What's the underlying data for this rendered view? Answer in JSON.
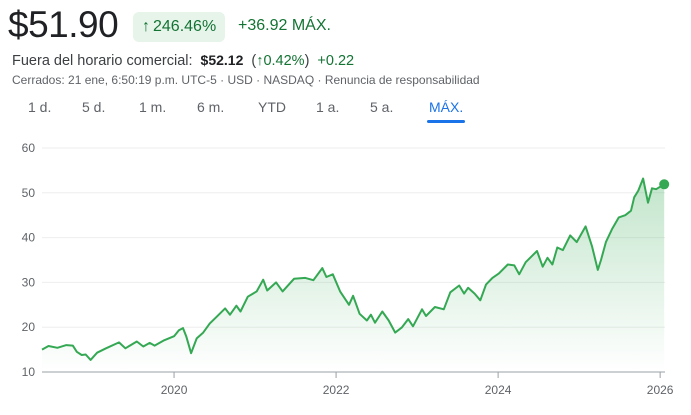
{
  "quote": {
    "price": "$51.90",
    "change_percent": "246.46%",
    "change_abs": "+36.92",
    "range_label": "MÁX.",
    "up_icon": "arrow-up-icon",
    "positive_color": "#137333"
  },
  "after_hours": {
    "label": "Fuera del horario comercial:",
    "price": "$52.12",
    "change_percent": "0.42%",
    "change_abs": "+0.22"
  },
  "meta": {
    "closed": "Cerrados: 21 ene, 6:50:19 p.m. UTC-5",
    "currency": "USD",
    "exchange": "NASDAQ",
    "disclaimer": "Renuncia de responsabilidad"
  },
  "tabs": [
    {
      "label": "1 d.",
      "active": false
    },
    {
      "label": "5 d.",
      "active": false
    },
    {
      "label": "1 m.",
      "active": false
    },
    {
      "label": "6 m.",
      "active": false
    },
    {
      "label": "YTD",
      "active": false
    },
    {
      "label": "1 a.",
      "active": false
    },
    {
      "label": "5 a.",
      "active": false
    },
    {
      "label": "MÁX.",
      "active": true
    }
  ],
  "chart_data": {
    "type": "area",
    "line_color": "#34a853",
    "grid": true,
    "ylim": [
      10,
      60
    ],
    "yticks": [
      "10",
      "20",
      "30",
      "40",
      "50",
      "60"
    ],
    "xlim": [
      2018.37,
      2026.06
    ],
    "xticks": [
      {
        "label": "2020",
        "value": 2020
      },
      {
        "label": "2022",
        "value": 2022
      },
      {
        "label": "2024",
        "value": 2024
      },
      {
        "label": "2026",
        "value": 2026
      }
    ],
    "points": [
      [
        2018.37,
        15.0
      ],
      [
        2018.45,
        15.8
      ],
      [
        2018.56,
        15.4
      ],
      [
        2018.67,
        16.0
      ],
      [
        2018.75,
        15.9
      ],
      [
        2018.8,
        14.5
      ],
      [
        2018.86,
        13.8
      ],
      [
        2018.91,
        13.9
      ],
      [
        2018.97,
        12.7
      ],
      [
        2019.05,
        14.3
      ],
      [
        2019.16,
        15.3
      ],
      [
        2019.32,
        16.6
      ],
      [
        2019.4,
        15.3
      ],
      [
        2019.54,
        16.8
      ],
      [
        2019.62,
        15.7
      ],
      [
        2019.7,
        16.5
      ],
      [
        2019.76,
        15.9
      ],
      [
        2019.87,
        17.0
      ],
      [
        2020.0,
        18.0
      ],
      [
        2020.06,
        19.3
      ],
      [
        2020.11,
        19.8
      ],
      [
        2020.15,
        18.0
      ],
      [
        2020.21,
        14.2
      ],
      [
        2020.28,
        17.5
      ],
      [
        2020.36,
        18.8
      ],
      [
        2020.44,
        20.8
      ],
      [
        2020.53,
        22.4
      ],
      [
        2020.63,
        24.2
      ],
      [
        2020.69,
        22.8
      ],
      [
        2020.77,
        24.8
      ],
      [
        2020.82,
        23.5
      ],
      [
        2020.91,
        26.8
      ],
      [
        2021.02,
        28.0
      ],
      [
        2021.1,
        30.6
      ],
      [
        2021.15,
        28.2
      ],
      [
        2021.26,
        30.0
      ],
      [
        2021.34,
        28.0
      ],
      [
        2021.48,
        30.8
      ],
      [
        2021.62,
        31.0
      ],
      [
        2021.72,
        30.5
      ],
      [
        2021.83,
        33.2
      ],
      [
        2021.88,
        31.2
      ],
      [
        2021.96,
        31.8
      ],
      [
        2022.05,
        28.0
      ],
      [
        2022.16,
        25.0
      ],
      [
        2022.21,
        27.0
      ],
      [
        2022.29,
        23.0
      ],
      [
        2022.38,
        21.5
      ],
      [
        2022.43,
        22.8
      ],
      [
        2022.48,
        21.0
      ],
      [
        2022.57,
        23.5
      ],
      [
        2022.65,
        21.5
      ],
      [
        2022.73,
        18.8
      ],
      [
        2022.81,
        19.9
      ],
      [
        2022.89,
        21.8
      ],
      [
        2022.95,
        20.2
      ],
      [
        2023.06,
        24.0
      ],
      [
        2023.11,
        22.5
      ],
      [
        2023.22,
        24.5
      ],
      [
        2023.33,
        24.0
      ],
      [
        2023.41,
        27.8
      ],
      [
        2023.52,
        29.3
      ],
      [
        2023.58,
        27.5
      ],
      [
        2023.63,
        28.8
      ],
      [
        2023.71,
        27.5
      ],
      [
        2023.78,
        26.0
      ],
      [
        2023.85,
        29.5
      ],
      [
        2023.93,
        31.0
      ],
      [
        2024.01,
        32.0
      ],
      [
        2024.12,
        34.0
      ],
      [
        2024.2,
        33.8
      ],
      [
        2024.26,
        31.8
      ],
      [
        2024.34,
        34.5
      ],
      [
        2024.48,
        37.0
      ],
      [
        2024.55,
        33.5
      ],
      [
        2024.61,
        35.5
      ],
      [
        2024.67,
        34.0
      ],
      [
        2024.73,
        37.8
      ],
      [
        2024.8,
        37.2
      ],
      [
        2024.89,
        40.5
      ],
      [
        2024.97,
        39.0
      ],
      [
        2025.08,
        42.5
      ],
      [
        2025.16,
        38.0
      ],
      [
        2025.23,
        32.8
      ],
      [
        2025.27,
        35.0
      ],
      [
        2025.33,
        39.0
      ],
      [
        2025.41,
        42.0
      ],
      [
        2025.49,
        44.5
      ],
      [
        2025.57,
        45.0
      ],
      [
        2025.64,
        46.0
      ],
      [
        2025.68,
        49.0
      ],
      [
        2025.73,
        50.5
      ],
      [
        2025.79,
        53.2
      ],
      [
        2025.85,
        47.8
      ],
      [
        2025.9,
        51.0
      ],
      [
        2025.95,
        50.8
      ],
      [
        2026.05,
        51.9
      ]
    ]
  }
}
